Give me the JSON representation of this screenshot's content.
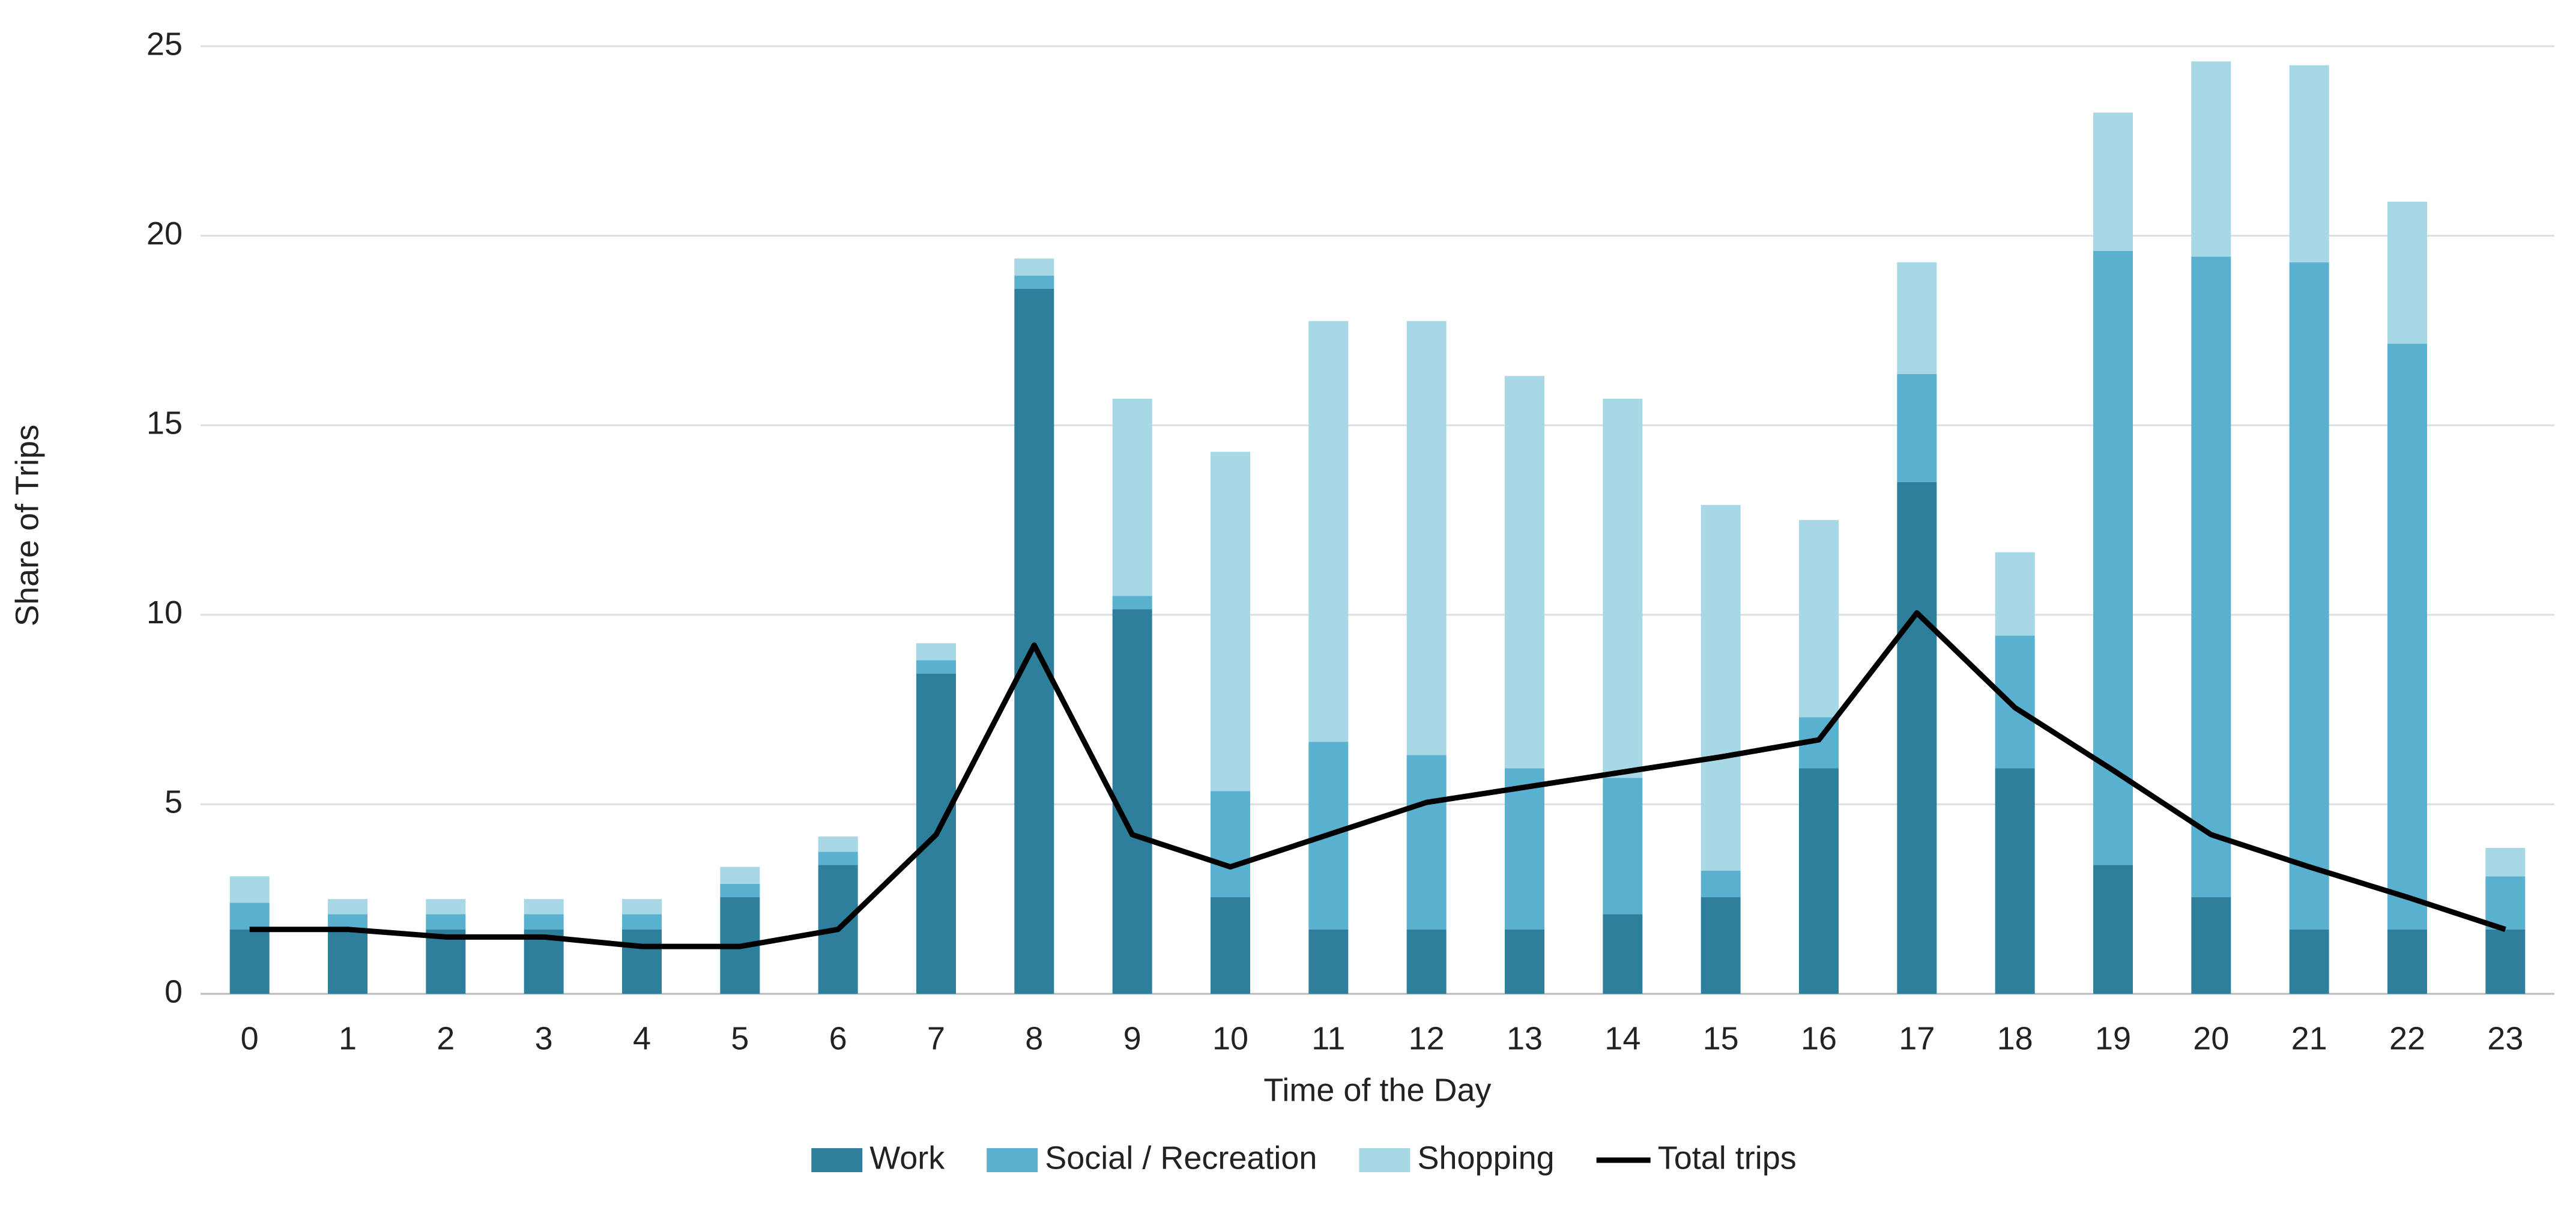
{
  "chart_data": {
    "type": "bar",
    "stacked": true,
    "x_label": "Time of the Day",
    "y_label": "Share of Trips",
    "categories": [
      "0",
      "1",
      "2",
      "3",
      "4",
      "5",
      "6",
      "7",
      "8",
      "9",
      "10",
      "11",
      "12",
      "13",
      "14",
      "15",
      "16",
      "17",
      "18",
      "19",
      "20",
      "21",
      "22",
      "23"
    ],
    "series": [
      {
        "name": "Work",
        "type": "bar",
        "color": "#2e7f9b",
        "values": [
          1.7,
          1.7,
          1.7,
          1.7,
          1.7,
          2.55,
          3.4,
          8.45,
          18.6,
          10.15,
          2.55,
          1.7,
          1.7,
          1.7,
          2.1,
          2.55,
          5.95,
          13.5,
          5.95,
          3.4,
          2.55,
          1.7,
          1.7,
          1.7
        ]
      },
      {
        "name": "Social / Recreation",
        "type": "bar",
        "color": "#5ab1cf",
        "values": [
          0.7,
          0.4,
          0.4,
          0.4,
          0.4,
          0.35,
          0.35,
          0.35,
          0.35,
          0.35,
          2.8,
          4.95,
          4.6,
          4.25,
          3.6,
          0.7,
          1.35,
          2.85,
          3.5,
          16.2,
          16.9,
          17.6,
          15.45,
          1.4
        ]
      },
      {
        "name": "Shopping",
        "type": "bar",
        "color": "#a8d8e6",
        "values": [
          0.7,
          0.4,
          0.4,
          0.4,
          0.4,
          0.45,
          0.4,
          0.45,
          0.45,
          5.2,
          8.95,
          11.1,
          11.45,
          10.35,
          10.0,
          9.65,
          5.2,
          2.95,
          2.2,
          3.65,
          5.15,
          5.2,
          3.75,
          0.75
        ]
      },
      {
        "name": "Total trips",
        "type": "line",
        "color": "#000000",
        "values": [
          1.7,
          1.7,
          1.5,
          1.5,
          1.25,
          1.25,
          1.7,
          4.2,
          9.2,
          4.2,
          3.35,
          4.2,
          5.05,
          5.45,
          5.85,
          6.25,
          6.7,
          10.05,
          7.55,
          5.9,
          4.2,
          3.35,
          2.55,
          1.7
        ]
      }
    ],
    "ylim": [
      0,
      25
    ],
    "yticks": [
      0,
      5,
      10,
      15,
      20,
      25
    ],
    "grid": true,
    "legend": "bottom"
  }
}
